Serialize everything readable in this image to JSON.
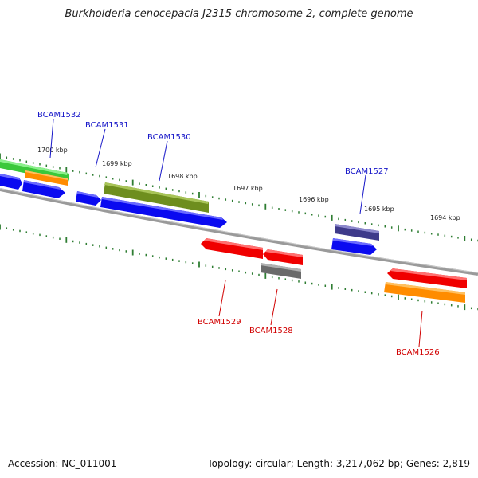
{
  "title": "Burkholderia cenocepacia J2315 chromosome 2, complete genome",
  "footer": {
    "accession_prefix": "Accession:",
    "accession": "NC_011001",
    "topology_prefix": "Topology:",
    "topology": "circular",
    "length_prefix": "Length:",
    "length": "3,217,062 bp",
    "genes_prefix": "Genes:",
    "genes": "2,819"
  },
  "colors": {
    "backbone": "#808080",
    "tick": "#2e7d32",
    "label_top": "#1515c8",
    "label_bottom": "#d10000",
    "blue": "#0a0af0",
    "red": "#f00000",
    "green_olive": "#6e8e1e",
    "lime": "#3ac83a",
    "orange": "#ff8c00",
    "gray": "#6a6a6a",
    "indigo": "#3e3a8a"
  },
  "kbp_labels": [
    "1700 kbp",
    "1699 kbp",
    "1698 kbp",
    "1697 kbp",
    "1696 kbp",
    "1695 kbp",
    "1694 kbp"
  ],
  "gene_labels_top": [
    "BCAM1532",
    "BCAM1531",
    "BCAM1530",
    "BCAM1527"
  ],
  "gene_labels_bottom": [
    "BCAM1529",
    "BCAM1528",
    "BCAM1526"
  ]
}
